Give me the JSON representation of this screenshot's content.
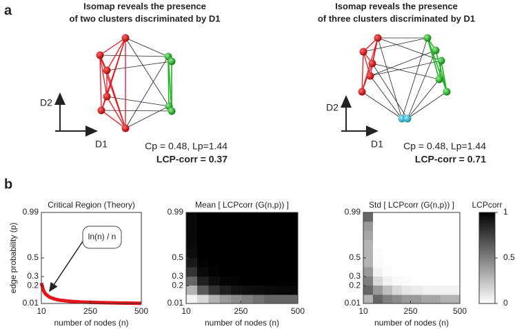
{
  "panel_a": {
    "label": "a",
    "diagrams": [
      {
        "title": [
          "Isomap reveals the presence",
          "of two clusters discriminated by D1"
        ],
        "y_axis": "D2",
        "x_axis": "D1",
        "stats": "Cp = 0.48, Lp=1.44",
        "lcp": "LCP-corr = 0.37"
      },
      {
        "title": [
          "Isomap reveals the presence",
          "of three clusters discriminated by D1"
        ],
        "y_axis": "D2",
        "x_axis": "D1",
        "stats": "Cp = 0.48, Lp=1.44",
        "lcp": "LCP-corr = 0.71"
      }
    ]
  },
  "panel_b_label": "b",
  "chart_data": [
    {
      "type": "line",
      "title": "Critical Region (Theory)",
      "x_label": "number of nodes (n)",
      "y_label": "edge probability (p)",
      "annotation": "ln(n) / n",
      "color": "#e8141b",
      "x": [
        10,
        20,
        30,
        50,
        75,
        100,
        150,
        200,
        300,
        400,
        500
      ],
      "values": [
        0.23,
        0.15,
        0.113,
        0.078,
        0.058,
        0.046,
        0.033,
        0.026,
        0.019,
        0.015,
        0.012
      ],
      "xlim": [
        10,
        500
      ],
      "xticks": [
        10,
        250,
        500
      ],
      "ylim": [
        0.01,
        0.99
      ],
      "yticks": [
        0.01,
        0.2,
        0.3,
        0.5,
        0.99
      ]
    },
    {
      "type": "heatmap",
      "title": "Mean [ LCPcorr (G(n,p)) ]",
      "x_label": "number of nodes (n)",
      "x": [
        34.5,
        83.5,
        132.5,
        181.5,
        230.5,
        279.5,
        328.5,
        377.5,
        426.5,
        475.5
      ],
      "y": [
        0.059,
        0.157,
        0.255,
        0.353,
        0.451,
        0.549,
        0.647,
        0.745,
        0.843,
        0.941
      ],
      "z": [
        [
          0.05,
          0.15,
          0.3,
          0.4,
          0.45,
          0.5,
          0.55,
          0.6,
          0.6,
          0.6
        ],
        [
          0.3,
          0.65,
          0.8,
          0.88,
          0.92,
          0.94,
          0.95,
          0.96,
          0.97,
          0.97
        ],
        [
          0.6,
          0.88,
          0.95,
          0.98,
          0.99,
          1,
          1,
          1,
          1,
          1
        ],
        [
          0.8,
          0.96,
          0.99,
          1,
          1,
          1,
          1,
          1,
          1,
          1
        ],
        [
          0.9,
          0.99,
          1,
          1,
          1,
          1,
          1,
          1,
          1,
          1
        ],
        [
          0.95,
          1,
          1,
          1,
          1,
          1,
          1,
          1,
          1,
          1
        ],
        [
          0.96,
          1,
          1,
          1,
          1,
          1,
          1,
          1,
          1,
          1
        ],
        [
          0.97,
          1,
          1,
          1,
          1,
          1,
          1,
          1,
          1,
          1
        ],
        [
          0.97,
          1,
          1,
          1,
          1,
          1,
          1,
          1,
          1,
          1
        ],
        [
          0.97,
          1,
          1,
          1,
          1,
          1,
          1,
          1,
          1,
          1
        ]
      ],
      "xlim": [
        10,
        500
      ],
      "xticks": [
        10,
        250,
        500
      ],
      "ylim": [
        0.01,
        0.99
      ],
      "yticks": [
        0.01,
        0.2,
        0.3,
        0.5,
        0.99
      ],
      "zlim": [
        0,
        1
      ]
    },
    {
      "type": "heatmap",
      "title": "Std [ LCPcorr (G(n,p)) ]",
      "x_label": "number of nodes (n)",
      "x": [
        34.5,
        83.5,
        132.5,
        181.5,
        230.5,
        279.5,
        328.5,
        377.5,
        426.5,
        475.5
      ],
      "y": [
        0.059,
        0.157,
        0.255,
        0.353,
        0.451,
        0.549,
        0.647,
        0.745,
        0.843,
        0.941
      ],
      "z": [
        [
          0.3,
          0.6,
          0.5,
          0.45,
          0.4,
          0.4,
          0.35,
          0.35,
          0.3,
          0.3
        ],
        [
          0.6,
          0.4,
          0.25,
          0.15,
          0.1,
          0.08,
          0.06,
          0.05,
          0.05,
          0.05
        ],
        [
          0.5,
          0.15,
          0.05,
          0.02,
          0.01,
          0,
          0,
          0,
          0,
          0
        ],
        [
          0.4,
          0.05,
          0.01,
          0,
          0,
          0,
          0,
          0,
          0,
          0
        ],
        [
          0.3,
          0.02,
          0,
          0,
          0,
          0,
          0,
          0,
          0,
          0
        ],
        [
          0.3,
          0.01,
          0,
          0,
          0,
          0,
          0,
          0,
          0,
          0
        ],
        [
          0.3,
          0,
          0,
          0,
          0,
          0,
          0,
          0,
          0,
          0
        ],
        [
          0.35,
          0,
          0,
          0,
          0,
          0,
          0,
          0,
          0,
          0
        ],
        [
          0.4,
          0,
          0,
          0,
          0,
          0,
          0,
          0,
          0,
          0
        ],
        [
          0.6,
          0,
          0,
          0,
          0,
          0,
          0,
          0,
          0,
          0
        ]
      ],
      "xlim": [
        10,
        500
      ],
      "xticks": [
        10,
        250,
        500
      ],
      "ylim": [
        0.01,
        0.99
      ],
      "yticks": [
        0.01,
        0.2,
        0.3,
        0.5,
        0.99
      ],
      "zlim": [
        0,
        1
      ],
      "zticks": [
        0,
        0.5,
        1
      ],
      "colorbar_label": "LCPcorr"
    }
  ]
}
